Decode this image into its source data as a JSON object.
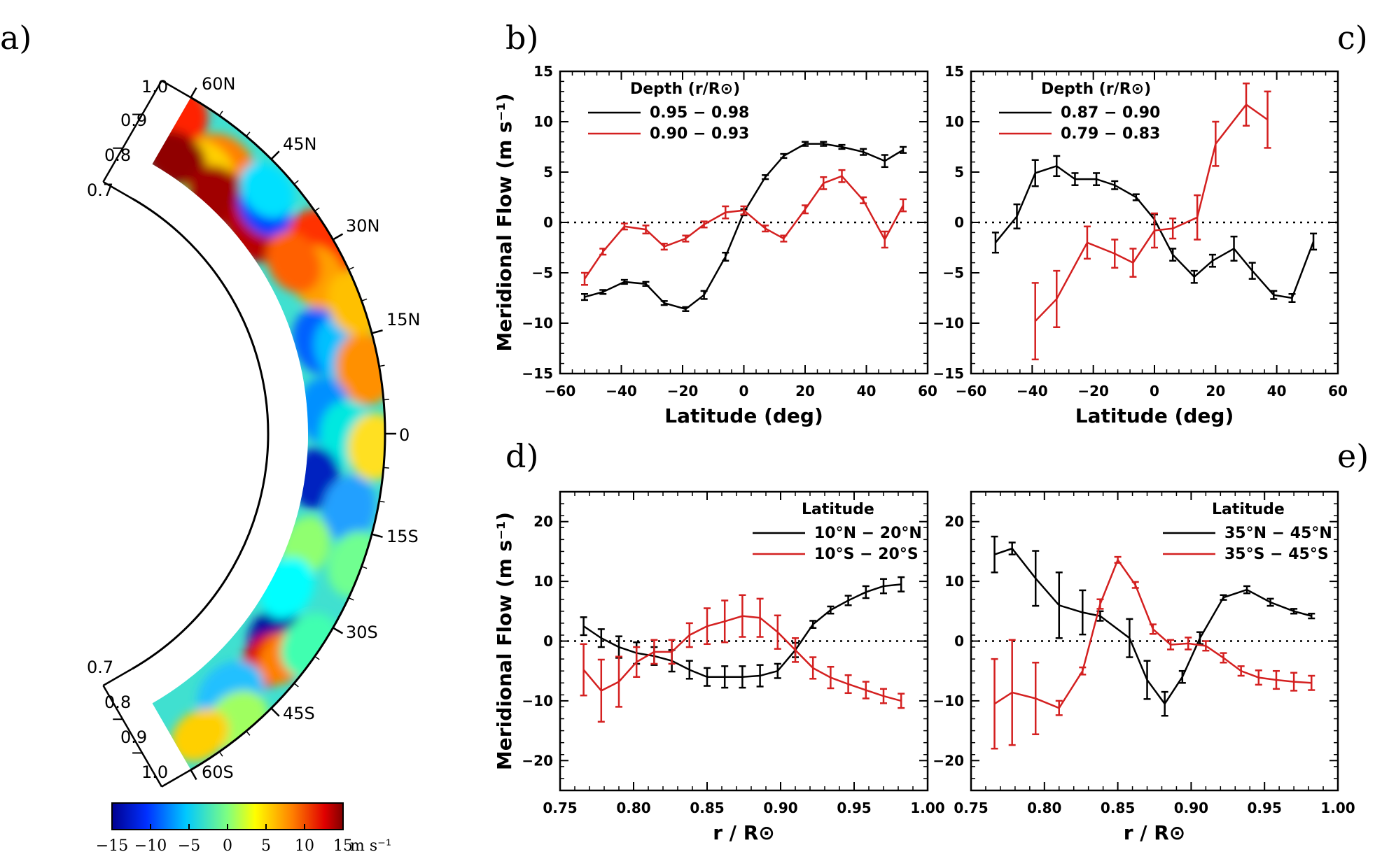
{
  "panel_letters": {
    "a": "a)",
    "b": "b)",
    "c": "c)",
    "d": "d)",
    "e": "e)"
  },
  "colors": {
    "black_series": "#000000",
    "red_series": "#d42020"
  },
  "chart_data": [
    {
      "id": "a",
      "type": "heatmap",
      "title": "",
      "radius_labels": [
        "1.0",
        "0.9",
        "0.8",
        "0.7"
      ],
      "latitude_labels": [
        "60N",
        "45N",
        "30N",
        "15N",
        "0",
        "15S",
        "30S",
        "45S",
        "60S"
      ],
      "colorbar": {
        "ticks": [
          "−15",
          "−10",
          "−5",
          "0",
          "5",
          "10",
          "15"
        ],
        "range": [
          -15,
          15
        ],
        "unit": "m s⁻¹"
      }
    },
    {
      "id": "b",
      "type": "line",
      "xlabel": "Latitude (deg)",
      "ylabel": "Meridional Flow (m s⁻¹)",
      "xlim": [
        -60,
        60
      ],
      "ylim": [
        -15,
        15
      ],
      "xticks": [
        "−60",
        "−40",
        "−20",
        "0",
        "20",
        "40",
        "60"
      ],
      "yticks": [
        "−15",
        "−10",
        "−5",
        "0",
        "5",
        "10",
        "15"
      ],
      "legend_title": "Depth (r/R⊙)",
      "legend_position": "top-left",
      "series": [
        {
          "name": "0.95 − 0.98",
          "color": "black",
          "x": [
            -52,
            -46,
            -39,
            -32,
            -26,
            -19,
            -13,
            -6,
            0,
            7,
            13,
            20,
            26,
            32,
            39,
            46,
            52
          ],
          "y": [
            -7.4,
            -6.9,
            -5.9,
            -6.1,
            -8.0,
            -8.6,
            -7.2,
            -3.4,
            1.0,
            4.5,
            6.6,
            7.8,
            7.8,
            7.5,
            7.0,
            6.1,
            7.2
          ],
          "err": [
            0.3,
            0.2,
            0.2,
            0.2,
            0.2,
            0.2,
            0.4,
            0.4,
            0.3,
            0.2,
            0.2,
            0.2,
            0.2,
            0.2,
            0.3,
            0.6,
            0.3
          ]
        },
        {
          "name": "0.90 − 0.93",
          "color": "red",
          "x": [
            -52,
            -46,
            -39,
            -32,
            -26,
            -19,
            -13,
            -6,
            0,
            7,
            13,
            20,
            26,
            32,
            39,
            46,
            52
          ],
          "y": [
            -5.6,
            -2.9,
            -0.4,
            -0.7,
            -2.4,
            -1.6,
            -0.2,
            1.0,
            1.2,
            -0.6,
            -1.6,
            1.3,
            3.9,
            4.6,
            2.2,
            -1.7,
            1.7
          ],
          "err": [
            0.6,
            0.3,
            0.3,
            0.4,
            0.3,
            0.3,
            0.3,
            0.6,
            0.4,
            0.3,
            0.3,
            0.4,
            0.6,
            0.6,
            0.3,
            0.8,
            0.6
          ]
        }
      ]
    },
    {
      "id": "c",
      "type": "line",
      "xlabel": "Latitude (deg)",
      "ylabel": "",
      "xlim": [
        -60,
        60
      ],
      "ylim": [
        -15,
        15
      ],
      "xticks": [
        "−60",
        "−40",
        "−20",
        "0",
        "20",
        "40",
        "60"
      ],
      "yticks": [
        "−15",
        "−10",
        "−5",
        "0",
        "5",
        "10",
        "15"
      ],
      "legend_title": "Depth (r/R⊙)",
      "legend_position": "top-left",
      "series": [
        {
          "name": "0.87 − 0.90",
          "color": "black",
          "x": [
            -52,
            -45,
            -39,
            -32,
            -26,
            -19,
            -13,
            -6,
            0,
            6,
            13,
            19,
            26,
            32,
            39,
            45,
            52
          ],
          "y": [
            -2.0,
            0.6,
            4.9,
            5.6,
            4.3,
            4.3,
            3.7,
            2.5,
            0.3,
            -3.2,
            -5.4,
            -3.8,
            -2.6,
            -4.8,
            -7.2,
            -7.5,
            -1.9
          ],
          "err": [
            1.0,
            1.2,
            1.3,
            1.0,
            0.6,
            0.6,
            0.4,
            0.3,
            0.5,
            0.6,
            0.6,
            0.6,
            1.2,
            0.8,
            0.4,
            0.4,
            0.8
          ]
        },
        {
          "name": "0.79 − 0.83",
          "color": "red",
          "x": [
            -39,
            -32,
            -22,
            -13,
            -7,
            0,
            6,
            14,
            20,
            30,
            37
          ],
          "y": [
            -9.8,
            -7.6,
            -2.0,
            -3.1,
            -4.0,
            -0.8,
            -0.6,
            0.5,
            7.8,
            11.7,
            10.2
          ],
          "err": [
            3.8,
            2.8,
            1.6,
            1.4,
            1.4,
            1.7,
            1.0,
            2.2,
            2.2,
            2.1,
            2.8
          ]
        }
      ]
    },
    {
      "id": "d",
      "type": "line",
      "xlabel": "r / R⊙",
      "ylabel": "Meridional Flow (m s⁻¹)",
      "xlim": [
        0.75,
        1.0
      ],
      "ylim": [
        -25,
        25
      ],
      "xticks": [
        "0.75",
        "0.80",
        "0.85",
        "0.90",
        "0.95",
        "1.00"
      ],
      "yticks": [
        "−20",
        "−10",
        "0",
        "10",
        "20"
      ],
      "legend_title": "Latitude",
      "legend_position": "top-right",
      "series": [
        {
          "name": "10°N − 20°N",
          "color": "black",
          "x": [
            0.766,
            0.778,
            0.79,
            0.802,
            0.814,
            0.826,
            0.838,
            0.85,
            0.862,
            0.874,
            0.886,
            0.898,
            0.91,
            0.922,
            0.934,
            0.946,
            0.958,
            0.97,
            0.982
          ],
          "y": [
            2.5,
            0.5,
            -1.0,
            -2.0,
            -2.5,
            -3.3,
            -4.8,
            -6.0,
            -6.0,
            -6.0,
            -5.8,
            -5.0,
            -1.5,
            2.8,
            5.2,
            6.8,
            8.2,
            9.2,
            9.5
          ],
          "err": [
            1.5,
            1.5,
            1.8,
            1.8,
            1.5,
            1.8,
            1.5,
            1.5,
            1.8,
            1.8,
            1.8,
            1.2,
            1.2,
            0.6,
            0.6,
            0.8,
            1.0,
            1.2,
            1.2
          ]
        },
        {
          "name": "10°S − 20°S",
          "color": "red",
          "x": [
            0.766,
            0.778,
            0.79,
            0.802,
            0.814,
            0.826,
            0.838,
            0.85,
            0.862,
            0.874,
            0.886,
            0.898,
            0.91,
            0.922,
            0.934,
            0.946,
            0.958,
            0.97,
            0.982
          ],
          "y": [
            -4.8,
            -8.3,
            -6.8,
            -3.5,
            -1.8,
            -1.8,
            1.0,
            2.5,
            3.3,
            4.2,
            3.9,
            1.5,
            -1.5,
            -4.5,
            -6.1,
            -7.2,
            -8.2,
            -9.2,
            -10.0
          ],
          "err": [
            4.3,
            5.2,
            4.2,
            2.5,
            2.0,
            2.0,
            2.0,
            3.0,
            3.5,
            3.5,
            3.2,
            2.8,
            2.0,
            1.8,
            1.8,
            1.5,
            1.4,
            1.2,
            1.2
          ]
        }
      ]
    },
    {
      "id": "e",
      "type": "line",
      "xlabel": "r / R⊙",
      "ylabel": "",
      "xlim": [
        0.75,
        1.0
      ],
      "ylim": [
        -25,
        25
      ],
      "xticks": [
        "0.75",
        "0.80",
        "0.85",
        "0.90",
        "0.95",
        "1.00"
      ],
      "yticks": [
        "−20",
        "−10",
        "0",
        "10",
        "20"
      ],
      "legend_title": "Latitude",
      "legend_position": "top-right",
      "series": [
        {
          "name": "35°N − 45°N",
          "color": "black",
          "x": [
            0.766,
            0.778,
            0.794,
            0.81,
            0.826,
            0.838,
            0.858,
            0.87,
            0.882,
            0.894,
            0.906,
            0.922,
            0.938,
            0.954,
            0.97,
            0.982
          ],
          "y": [
            14.5,
            15.5,
            10.5,
            6.0,
            4.8,
            4.2,
            0.5,
            -6.5,
            -10.5,
            -6.0,
            0.5,
            7.3,
            8.6,
            6.5,
            5.0,
            4.2
          ],
          "err": [
            3.0,
            1.0,
            4.6,
            5.5,
            3.7,
            0.8,
            3.2,
            3.2,
            2.0,
            1.0,
            1.0,
            0.4,
            0.6,
            0.6,
            0.4,
            0.4
          ]
        },
        {
          "name": "35°S − 45°S",
          "color": "red",
          "x": [
            0.766,
            0.778,
            0.794,
            0.81,
            0.826,
            0.838,
            0.85,
            0.862,
            0.874,
            0.886,
            0.898,
            0.91,
            0.922,
            0.934,
            0.946,
            0.958,
            0.97,
            0.982
          ],
          "y": [
            -10.5,
            -8.6,
            -9.6,
            -11.2,
            -5.0,
            6.2,
            13.6,
            9.4,
            2.0,
            -0.6,
            -0.4,
            -0.8,
            -2.8,
            -5.0,
            -6.1,
            -6.5,
            -6.8,
            -7.0
          ],
          "err": [
            7.5,
            8.8,
            6.0,
            1.2,
            0.6,
            0.8,
            0.5,
            0.5,
            0.8,
            0.8,
            1.0,
            0.8,
            0.8,
            0.8,
            1.2,
            1.5,
            1.5,
            1.2
          ]
        }
      ]
    }
  ]
}
